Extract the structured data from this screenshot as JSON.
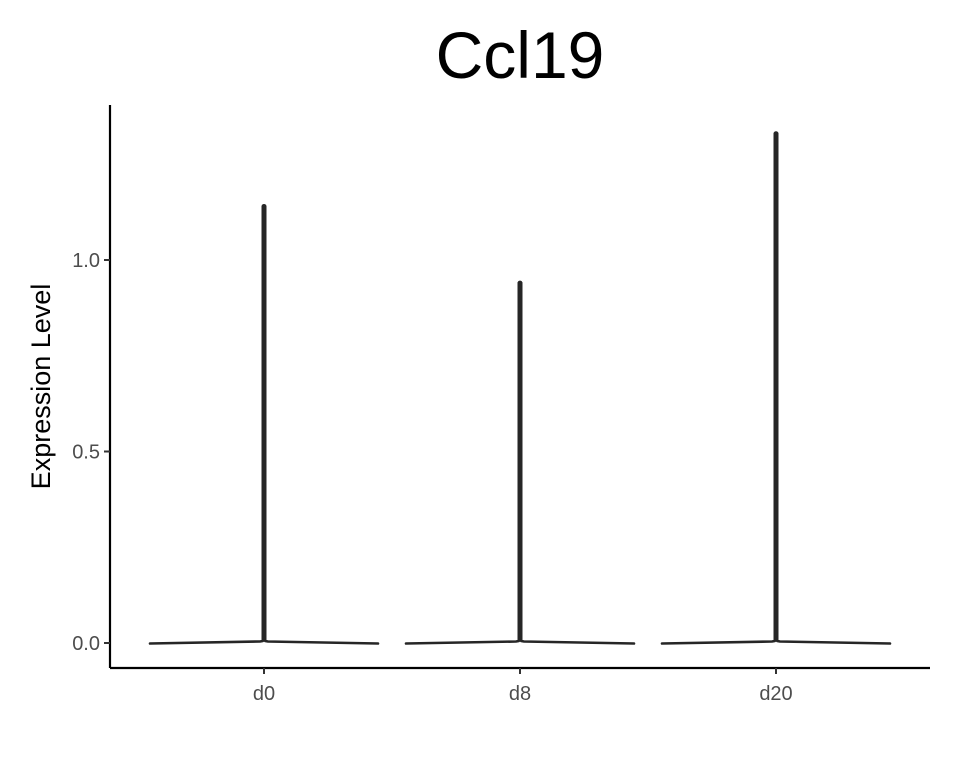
{
  "chart_data": {
    "type": "violin",
    "title": "Ccl19",
    "xlabel": "",
    "ylabel": "Expression Level",
    "categories": [
      "d0",
      "d8",
      "d20"
    ],
    "yticks": [
      0.0,
      0.5,
      1.0
    ],
    "ytick_labels": [
      "0.0",
      "0.5",
      "1.0"
    ],
    "ylim": [
      -0.065,
      1.4
    ],
    "grid": false,
    "legend": "none",
    "series": [
      {
        "category": "d0",
        "max": 1.14,
        "points": [
          1.14
        ]
      },
      {
        "category": "d8",
        "max": 0.94,
        "points": [
          0.94,
          0.85
        ]
      },
      {
        "category": "d20",
        "max": 1.33,
        "points": [
          1.33
        ]
      }
    ]
  }
}
